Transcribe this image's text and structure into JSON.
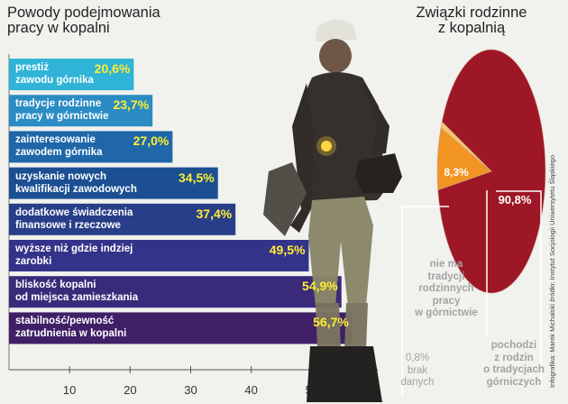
{
  "titles": {
    "left": "Powody podejmowania pracy w kopalni",
    "right": "Związki rodzinne z kopalnią"
  },
  "credit": "Infografika: Marek Michalski   źródło: Instytut Socjologii Uniwersytetu Śląskiego",
  "colors": {
    "bar_gradient": [
      "#2fb3d6",
      "#2b8cc4",
      "#1f67a8",
      "#1b4f92",
      "#283e88",
      "#34338a",
      "#3a2a7a",
      "#3f2067"
    ],
    "pie_main": "#9e1726",
    "pie_slice": "#f19422",
    "pie_small": "#f6c76a",
    "value_text": "#ffee33"
  },
  "chart_data": [
    {
      "type": "bar",
      "orientation": "horizontal",
      "title": "Powody podejmowania pracy w kopalni",
      "categories": [
        "prestiż zawodu górnika",
        "tradycje rodzinne pracy w górnictwie",
        "zainteresowanie zawodem górnika",
        "uzyskanie nowych kwalifikacji zawodowych",
        "dodatkowe świadczenia finansowe i rzeczowe",
        "wyższe niż gdzie indziej zarobki",
        "bliskość kopalni od miejsca zamieszkania",
        "stabilność/pewność zatrudnienia w kopalni"
      ],
      "label_lines": [
        [
          "prestiż",
          "zawodu górnika"
        ],
        [
          "tradycje rodzinne",
          "pracy w górnictwie"
        ],
        [
          "zainteresowanie",
          "zawodem górnika"
        ],
        [
          "uzyskanie nowych",
          "kwalifikacji zawodowych"
        ],
        [
          "dodatkowe świadczenia",
          "finansowe i rzeczowe"
        ],
        [
          "wyższe niż gdzie indziej",
          "zarobki"
        ],
        [
          "bliskość kopalni",
          "od miejsca zamieszkania"
        ],
        [
          "stabilność/pewność",
          "zatrudnienia w kopalni"
        ]
      ],
      "values": [
        20.6,
        23.7,
        27.0,
        34.5,
        37.4,
        49.5,
        54.9,
        56.7
      ],
      "value_labels": [
        "20,6%",
        "23,7%",
        "27,0%",
        "34,5%",
        "37,4%",
        "49,5%",
        "54,9%",
        "56,7%"
      ],
      "xlim": [
        0,
        60
      ],
      "xticks": [
        10,
        20,
        30,
        40,
        50,
        60
      ]
    },
    {
      "type": "pie",
      "title": "Związki rodzinne z kopalnią",
      "slices": [
        {
          "label": "pochodzi z rodzin o tradycjach górniczych",
          "value": 90.8,
          "value_label": "90,8%",
          "lines": [
            "pochodzi",
            "z rodzin",
            "o tradycjach",
            "górniczych"
          ]
        },
        {
          "label": "nie ma tradycji rodzinnych pracy w górnictwie",
          "value": 8.3,
          "value_label": "8,3%",
          "lines": [
            "nie ma",
            "tradycji",
            "rodzinnych",
            "pracy",
            "w górnictwie"
          ]
        },
        {
          "label": "brak danych",
          "value": 0.8,
          "value_label": "0,8%",
          "lines": [
            "0,8%",
            "brak",
            "danych"
          ]
        }
      ]
    }
  ]
}
